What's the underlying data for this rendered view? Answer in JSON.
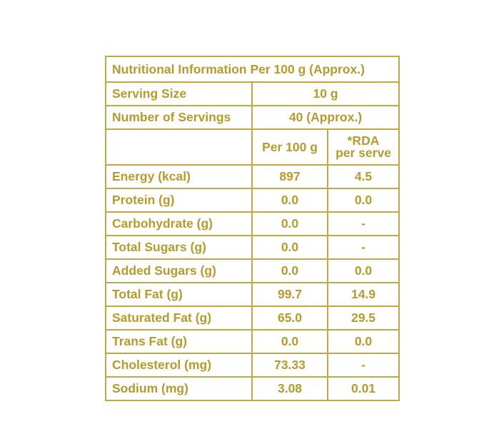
{
  "table": {
    "title": "Nutritional Information Per 100 g (Approx.)",
    "serving_size_label": "Serving Size",
    "serving_size_value": "10 g",
    "servings_label": "Number of Servings",
    "servings_value": "40 (Approx.)",
    "col_per100": "Per 100 g",
    "col_rda_line1": "*RDA",
    "col_rda_line2": "per serve",
    "rows": [
      {
        "label": "Energy (kcal)",
        "per100": "897",
        "rda": "4.5"
      },
      {
        "label": "Protein (g)",
        "per100": "0.0",
        "rda": "0.0"
      },
      {
        "label": "Carbohydrate (g)",
        "per100": "0.0",
        "rda": "-"
      },
      {
        "label": "Total Sugars (g)",
        "per100": "0.0",
        "rda": "-"
      },
      {
        "label": "Added Sugars (g)",
        "per100": "0.0",
        "rda": "0.0"
      },
      {
        "label": "Total Fat (g)",
        "per100": "99.7",
        "rda": "14.9"
      },
      {
        "label": "Saturated Fat (g)",
        "per100": "65.0",
        "rda": "29.5"
      },
      {
        "label": "Trans Fat (g)",
        "per100": "0.0",
        "rda": "0.0"
      },
      {
        "label": "Cholesterol (mg)",
        "per100": "73.33",
        "rda": "-"
      },
      {
        "label": "Sodium (mg)",
        "per100": "3.08",
        "rda": "0.01"
      }
    ],
    "colors": {
      "text": "#b79a2b",
      "border": "#c3a743",
      "background": "#ffffff"
    }
  }
}
